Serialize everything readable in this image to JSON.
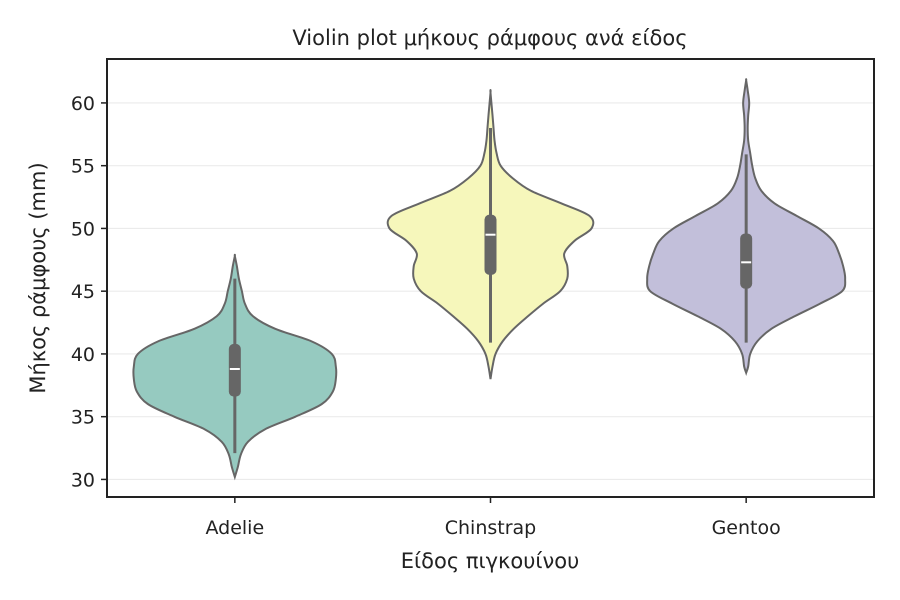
{
  "chart_data": {
    "type": "violin",
    "title": "Violin plot μήκους ράμφους ανά είδος",
    "xlabel": "Είδος πιγκουίνου",
    "ylabel": "Μήκος ράμφους (mm)",
    "ylim": [
      28.6,
      63.5
    ],
    "yticks": [
      30,
      35,
      40,
      45,
      50,
      55,
      60
    ],
    "grid": true,
    "categories": [
      "Adelie",
      "Chinstrap",
      "Gentoo"
    ],
    "colors": [
      "#96cac0",
      "#f6f7bb",
      "#c2bfda"
    ],
    "series": [
      {
        "category": "Adelie",
        "min": 32.1,
        "q1": 36.6,
        "median": 38.8,
        "q3": 40.8,
        "max": 46.0,
        "kde": [
          [
            30.2,
            0
          ],
          [
            31,
            0.03
          ],
          [
            32,
            0.06
          ],
          [
            33,
            0.13
          ],
          [
            34,
            0.3
          ],
          [
            35,
            0.6
          ],
          [
            36,
            0.86
          ],
          [
            37,
            0.97
          ],
          [
            38,
            1.0
          ],
          [
            39,
            1.0
          ],
          [
            40,
            0.96
          ],
          [
            41,
            0.76
          ],
          [
            42,
            0.4
          ],
          [
            43,
            0.18
          ],
          [
            44,
            0.1
          ],
          [
            45,
            0.07
          ],
          [
            46,
            0.04
          ],
          [
            47,
            0.02
          ],
          [
            47.8,
            0
          ]
        ]
      },
      {
        "category": "Chinstrap",
        "min": 40.9,
        "q1": 46.3,
        "median": 49.5,
        "q3": 51.1,
        "max": 58.0,
        "kde": [
          [
            38,
            0
          ],
          [
            39,
            0.02
          ],
          [
            40,
            0.05
          ],
          [
            41,
            0.12
          ],
          [
            42,
            0.23
          ],
          [
            43,
            0.37
          ],
          [
            44,
            0.52
          ],
          [
            45,
            0.69
          ],
          [
            46,
            0.76
          ],
          [
            47,
            0.76
          ],
          [
            48,
            0.73
          ],
          [
            49,
            0.83
          ],
          [
            50,
            1.0
          ],
          [
            51,
            0.98
          ],
          [
            52,
            0.7
          ],
          [
            53,
            0.4
          ],
          [
            54,
            0.22
          ],
          [
            55,
            0.1
          ],
          [
            56,
            0.06
          ],
          [
            57,
            0.04
          ],
          [
            58,
            0.03
          ],
          [
            59,
            0.02
          ],
          [
            60.8,
            0
          ]
        ]
      },
      {
        "category": "Gentoo",
        "min": 40.9,
        "q1": 45.2,
        "median": 47.3,
        "q3": 49.6,
        "max": 55.9,
        "kde": [
          [
            38.5,
            0
          ],
          [
            39,
            0.02
          ],
          [
            40,
            0.04
          ],
          [
            41,
            0.11
          ],
          [
            42,
            0.25
          ],
          [
            43,
            0.48
          ],
          [
            44,
            0.73
          ],
          [
            45,
            0.95
          ],
          [
            46,
            0.98
          ],
          [
            47,
            0.96
          ],
          [
            48,
            0.92
          ],
          [
            49,
            0.86
          ],
          [
            50,
            0.72
          ],
          [
            51,
            0.5
          ],
          [
            52,
            0.28
          ],
          [
            53,
            0.15
          ],
          [
            54,
            0.09
          ],
          [
            55,
            0.06
          ],
          [
            56,
            0.04
          ],
          [
            57,
            0.02
          ],
          [
            58,
            0.015
          ],
          [
            59,
            0.02
          ],
          [
            60,
            0.03
          ],
          [
            61,
            0.015
          ],
          [
            61.8,
            0
          ]
        ]
      }
    ]
  }
}
